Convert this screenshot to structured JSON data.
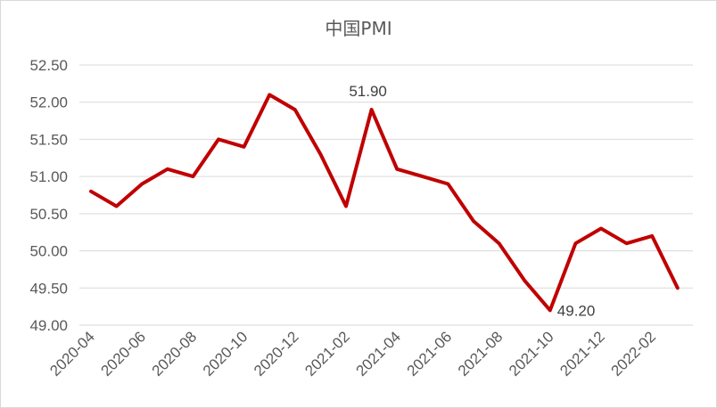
{
  "chart_data": {
    "type": "line",
    "title": "中国PMI",
    "xlabel": "",
    "ylabel": "",
    "ylim": [
      49.0,
      52.5
    ],
    "yticks": [
      "49.00",
      "49.50",
      "50.00",
      "50.50",
      "51.00",
      "51.50",
      "52.00",
      "52.50"
    ],
    "grid": true,
    "x": [
      "2020-04",
      "2020-05",
      "2020-06",
      "2020-07",
      "2020-08",
      "2020-09",
      "2020-10",
      "2020-11",
      "2020-12",
      "2021-01",
      "2021-02",
      "2021-03",
      "2021-04",
      "2021-05",
      "2021-06",
      "2021-07",
      "2021-08",
      "2021-09",
      "2021-10",
      "2021-11",
      "2021-12",
      "2022-01",
      "2022-02",
      "2022-03"
    ],
    "xtick_labels": [
      "2020-04",
      "2020-06",
      "2020-08",
      "2020-10",
      "2020-12",
      "2021-02",
      "2021-04",
      "2021-06",
      "2021-08",
      "2021-10",
      "2021-12",
      "2022-02"
    ],
    "series": [
      {
        "name": "",
        "color": "#c00000",
        "values": [
          50.8,
          50.6,
          50.9,
          51.1,
          51.0,
          51.5,
          51.4,
          52.1,
          51.9,
          51.3,
          50.6,
          51.9,
          51.1,
          51.0,
          50.9,
          50.4,
          50.1,
          49.6,
          49.2,
          50.1,
          50.3,
          50.1,
          50.2,
          49.5
        ]
      }
    ],
    "annotations": [
      {
        "index": 11,
        "text": "51.90",
        "position": "above"
      },
      {
        "index": 18,
        "text": "49.20",
        "position": "right"
      }
    ]
  }
}
